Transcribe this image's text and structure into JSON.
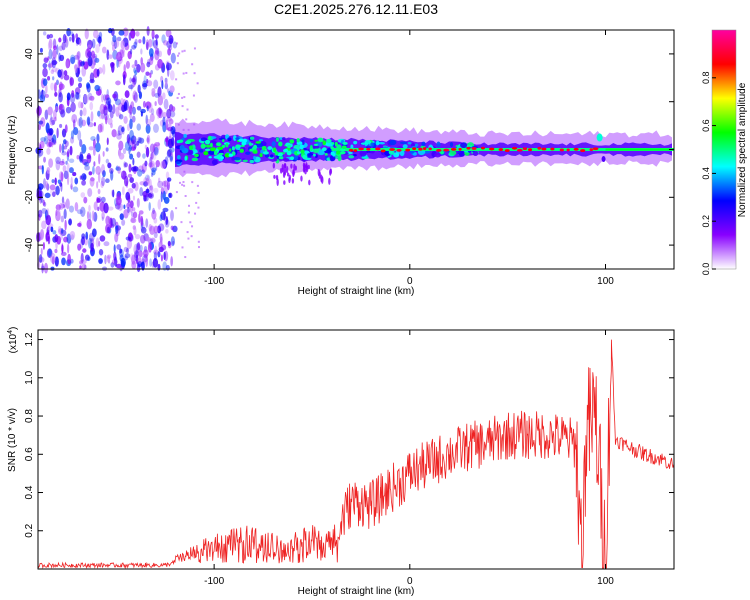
{
  "title": "C2E1.2025.276.12.11.E03",
  "chart_data": [
    {
      "type": "heatmap",
      "name": "spectrogram",
      "xlabel": "Height of straight line (km)",
      "ylabel": "Frequency (Hz)",
      "xlim": [
        -190,
        135
      ],
      "ylim": [
        -50,
        50
      ],
      "x_ticks": [
        -100,
        0,
        100
      ],
      "y_ticks": [
        -40,
        -20,
        0,
        20,
        40
      ],
      "noise_region": {
        "x_range": [
          -190,
          -120
        ],
        "y_range": [
          -50,
          50
        ],
        "description": "sparse noise speckle"
      },
      "signal_band": {
        "x_range": [
          -120,
          135
        ],
        "center_hz": 0,
        "half_width_hz_start": 8,
        "half_width_hz_end": 2
      },
      "peak_feature": {
        "x": 97,
        "freq_hz": 5
      },
      "colorbar": {
        "label": "Normalized spectral amplitude",
        "range": [
          0,
          1
        ],
        "ticks": [
          0.0,
          0.2,
          0.4,
          0.6,
          0.8
        ],
        "colormap": [
          "#ffffff",
          "#8800ff",
          "#0000ff",
          "#00ffff",
          "#00ff00",
          "#ffff00",
          "#ff0000",
          "#ff00a0"
        ]
      }
    },
    {
      "type": "line",
      "name": "snr",
      "xlabel": "Height of straight line (km)",
      "ylabel": "SNR (10 * v/v)",
      "y_multiplier": "(x10",
      "y_multiplier_exp": "4",
      "y_multiplier_close": ")",
      "xlim": [
        -190,
        135
      ],
      "ylim": [
        0,
        1.25
      ],
      "x_ticks": [
        -100,
        0,
        100
      ],
      "y_ticks": [
        0.2,
        0.4,
        0.6,
        0.8,
        1.0,
        1.2
      ],
      "line_color": "#ee2222",
      "series": [
        {
          "name": "SNR",
          "x": [
            -190,
            -150,
            -125,
            -115,
            -105,
            -95,
            -85,
            -80,
            -75,
            -70,
            -65,
            -60,
            -55,
            -50,
            -45,
            -40,
            -35,
            -30,
            -25,
            -20,
            -15,
            -10,
            -5,
            0,
            10,
            20,
            30,
            40,
            50,
            60,
            70,
            80,
            85,
            88,
            90,
            95,
            100,
            103,
            105,
            110,
            120,
            130,
            135
          ],
          "values": [
            0.02,
            0.02,
            0.02,
            0.05,
            0.1,
            0.13,
            0.15,
            0.17,
            0.12,
            0.13,
            0.1,
            0.12,
            0.14,
            0.16,
            0.12,
            0.15,
            0.25,
            0.35,
            0.35,
            0.33,
            0.37,
            0.42,
            0.45,
            0.5,
            0.55,
            0.6,
            0.64,
            0.66,
            0.7,
            0.7,
            0.7,
            0.68,
            0.65,
            0.02,
            0.7,
            0.8,
            0.02,
            1.2,
            0.68,
            0.65,
            0.6,
            0.57,
            0.54
          ]
        }
      ]
    }
  ]
}
